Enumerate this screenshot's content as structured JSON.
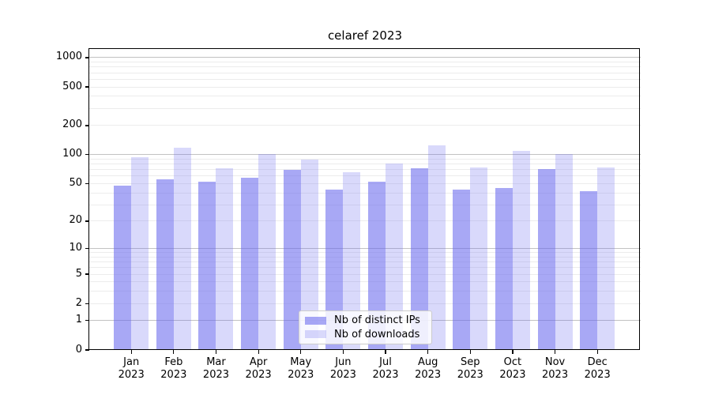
{
  "title": "celaref 2023",
  "chart_data": {
    "type": "bar",
    "title": "celaref 2023",
    "y_scale": "log1p",
    "ylim": [
      0,
      1100
    ],
    "grid": true,
    "legend_position": "lower center",
    "categories": [
      "Jan",
      "Feb",
      "Mar",
      "Apr",
      "May",
      "Jun",
      "Jul",
      "Aug",
      "Sep",
      "Oct",
      "Nov",
      "Dec"
    ],
    "year": "2023",
    "y_ticks": [
      0,
      1,
      2,
      5,
      10,
      20,
      50,
      100,
      200,
      500,
      1000
    ],
    "y_minor_gridlines": [
      2,
      3,
      4,
      5,
      6,
      7,
      8,
      9,
      20,
      30,
      40,
      50,
      60,
      70,
      80,
      90,
      200,
      300,
      400,
      500,
      600,
      700,
      800,
      900
    ],
    "y_major_gridlines": [
      1,
      10,
      100,
      1000
    ],
    "series": [
      {
        "name": "Nb of distinct IPs",
        "color": "#6666ee",
        "alpha": 0.57,
        "values": [
          48,
          55,
          52,
          58,
          69,
          43,
          52,
          72,
          43,
          45,
          71,
          42
        ]
      },
      {
        "name": "Nb of downloads",
        "color": "#6666ee",
        "alpha": 0.25,
        "values": [
          94,
          119,
          72,
          102,
          89,
          66,
          81,
          125,
          74,
          110,
          102,
          74
        ]
      }
    ]
  },
  "legend": {
    "item_1": "Nb of distinct IPs",
    "item_2": "Nb of downloads"
  },
  "colors": {
    "bar_base": "#6666ee",
    "grid_major": "#c2c2c2",
    "grid_minor": "#ececec",
    "axis": "#000000",
    "background": "#ffffff",
    "legend_border": "#cccccc"
  }
}
